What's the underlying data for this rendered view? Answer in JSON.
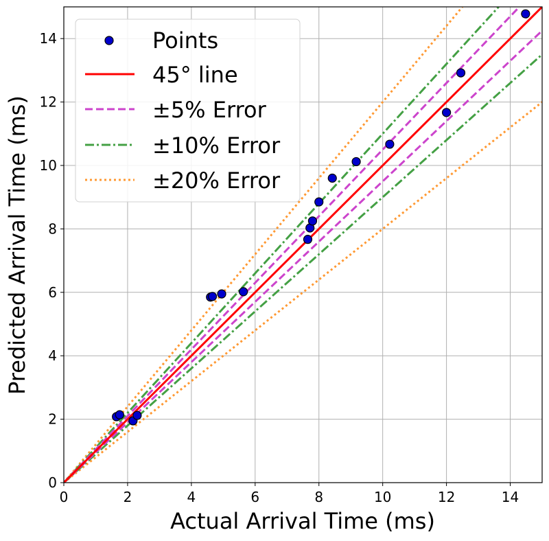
{
  "chart_data": {
    "type": "scatter",
    "xlabel": "Actual Arrival Time (ms)",
    "ylabel": "Predicted Arrival Time (ms)",
    "xlim": [
      0,
      15
    ],
    "ylim": [
      0,
      15
    ],
    "xticks": [
      0,
      2,
      4,
      6,
      8,
      10,
      12,
      14
    ],
    "yticks": [
      0,
      2,
      4,
      6,
      8,
      10,
      12,
      14
    ],
    "grid": true,
    "legend_position": "top-left",
    "points": [
      {
        "x": 1.65,
        "y": 2.08
      },
      {
        "x": 1.75,
        "y": 2.14
      },
      {
        "x": 2.17,
        "y": 1.95
      },
      {
        "x": 2.3,
        "y": 2.12
      },
      {
        "x": 4.6,
        "y": 5.85
      },
      {
        "x": 4.66,
        "y": 5.87
      },
      {
        "x": 4.95,
        "y": 5.95
      },
      {
        "x": 5.63,
        "y": 6.02
      },
      {
        "x": 7.65,
        "y": 7.67
      },
      {
        "x": 7.72,
        "y": 8.03
      },
      {
        "x": 7.8,
        "y": 8.25
      },
      {
        "x": 8.0,
        "y": 8.85
      },
      {
        "x": 8.42,
        "y": 9.6
      },
      {
        "x": 9.17,
        "y": 10.12
      },
      {
        "x": 10.22,
        "y": 10.67
      },
      {
        "x": 12.0,
        "y": 11.67
      },
      {
        "x": 12.45,
        "y": 12.92
      },
      {
        "x": 14.48,
        "y": 14.78
      }
    ],
    "series": [
      {
        "name": "Points",
        "kind": "scatter",
        "color": "#0000cc",
        "edge_color": "#000000"
      },
      {
        "name": "45° line",
        "kind": "line",
        "slopes": [
          1.0
        ],
        "color": "#ff0000",
        "dash": "solid"
      },
      {
        "name": "±5% Error",
        "kind": "line",
        "slopes": [
          1.05,
          0.95
        ],
        "color": "#cc44cc",
        "dash": "dashed"
      },
      {
        "name": "±10% Error",
        "kind": "line",
        "slopes": [
          1.1,
          0.9
        ],
        "color": "#44a044",
        "dash": "dashdot"
      },
      {
        "name": "±20% Error",
        "kind": "line",
        "slopes": [
          1.2,
          0.8
        ],
        "color": "#ff9933",
        "dash": "dotted"
      }
    ]
  }
}
